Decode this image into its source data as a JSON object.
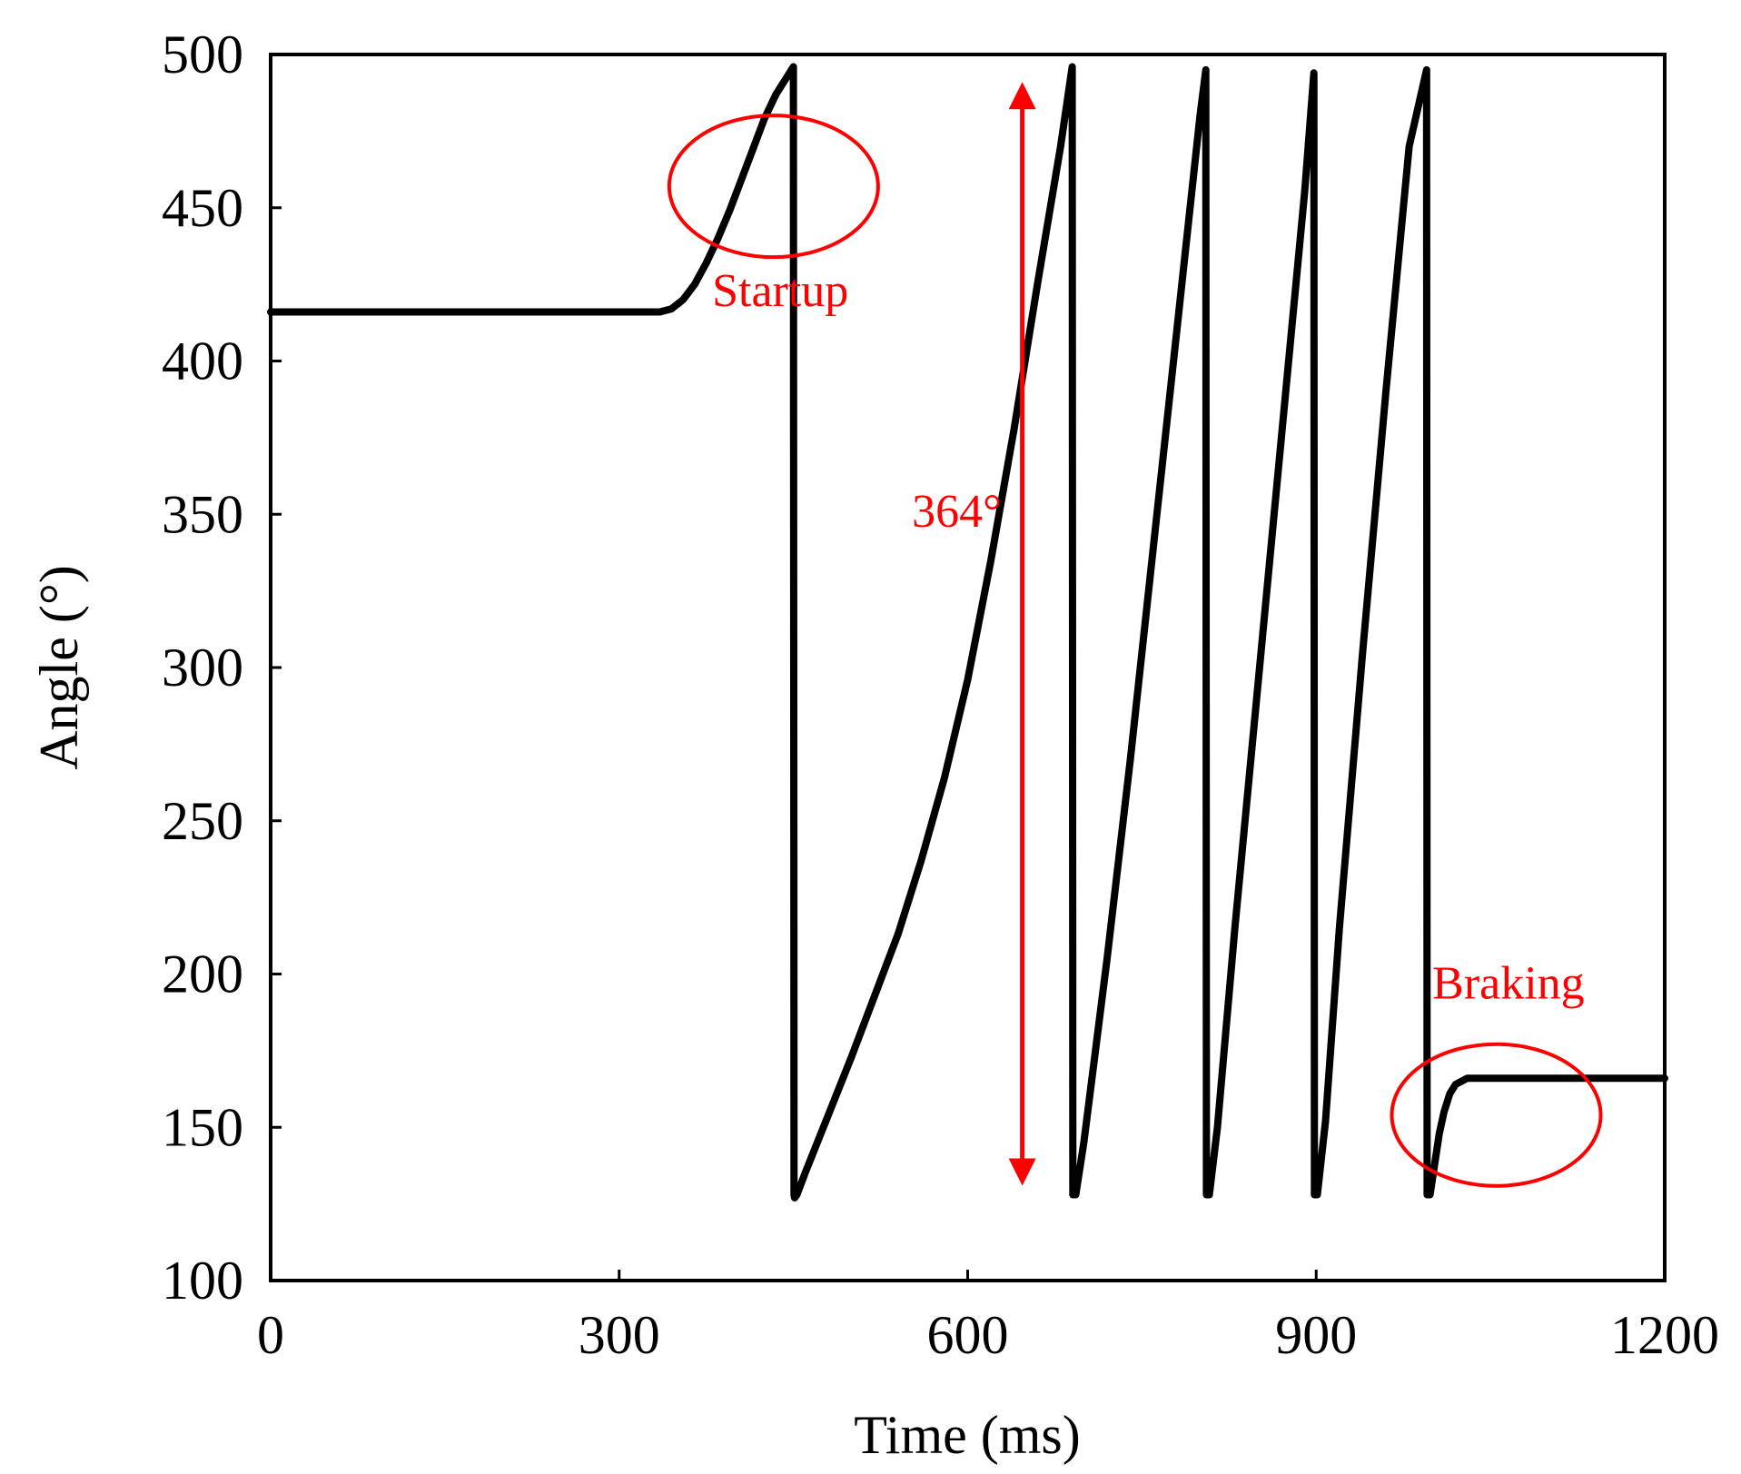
{
  "chart_data": {
    "type": "line",
    "title": "",
    "xlabel": "Time (ms)",
    "ylabel": "Angle (°)",
    "xlim": [
      0,
      1200
    ],
    "ylim": [
      100,
      500
    ],
    "x_ticks": [
      0,
      300,
      600,
      900,
      1200
    ],
    "x_tick_labels": [
      "0",
      "300",
      "600",
      "900",
      "1200"
    ],
    "y_ticks": [
      100,
      150,
      200,
      250,
      300,
      350,
      400,
      450,
      500
    ],
    "y_tick_labels": [
      "100",
      "150",
      "200",
      "250",
      "300",
      "350",
      "400",
      "450",
      "500"
    ],
    "grid": false,
    "series": [
      {
        "name": "Angle",
        "color": "#000000",
        "x": [
          0,
          335,
          345,
          355,
          365,
          375,
          385,
          395,
          405,
          415,
          425,
          435,
          445,
          450,
          450.5,
          451,
          453,
          460,
          480,
          500,
          520,
          540,
          560,
          580,
          600,
          620,
          640,
          660,
          680,
          690,
          690.5,
          693,
          700,
          720,
          740,
          760,
          780,
          800,
          805,
          805.5,
          808,
          815,
          830,
          850,
          870,
          890,
          898,
          898.5,
          901,
          908,
          920,
          940,
          960,
          980,
          995,
          995.5,
          998,
          1002,
          1006,
          1010,
          1015,
          1020,
          1025,
          1030,
          1035,
          1040,
          1200
        ],
        "values": [
          416,
          416,
          417,
          420,
          425,
          432,
          440,
          449,
          459,
          469,
          479,
          487,
          493,
          496,
          128,
          127,
          128,
          135,
          154,
          173,
          193,
          213,
          237,
          264,
          296,
          335,
          378,
          425,
          470,
          496,
          128,
          128,
          145,
          205,
          270,
          340,
          410,
          480,
          495,
          128,
          128,
          150,
          215,
          295,
          375,
          455,
          494,
          128,
          128,
          152,
          215,
          305,
          390,
          470,
          495,
          128,
          128,
          138,
          148,
          155,
          161,
          164,
          165,
          166,
          166,
          166,
          166
        ]
      }
    ],
    "annotations": [
      {
        "text": "Startup",
        "color": "#ff0000",
        "circle_x": 433,
        "circle_y": 457,
        "text_x": 380,
        "text_y": 418
      },
      {
        "text": "364°",
        "color": "#ff0000",
        "arrow_x": 647,
        "arrow_from": 128,
        "arrow_to": 494,
        "text_x": 552,
        "text_y": 346
      },
      {
        "text": "Braking",
        "color": "#ff0000",
        "circle_x": 1055,
        "circle_y": 154,
        "text_x": 1000,
        "text_y": 192
      }
    ]
  }
}
